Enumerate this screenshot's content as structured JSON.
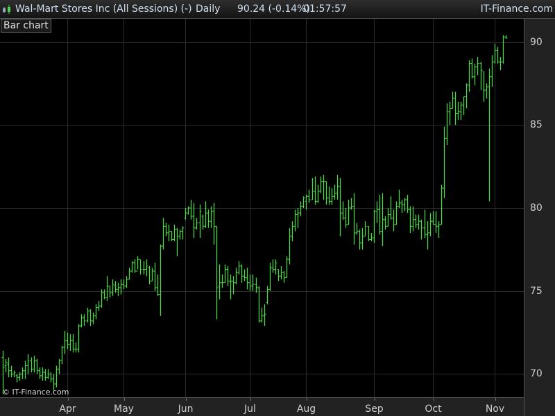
{
  "header": {
    "title": "Wal-Mart Stores Inc (All Sessions) (-)",
    "interval": "Daily",
    "quote": "90.24 (-0.14%)",
    "time": "01:57:57",
    "brand": "IT-Finance.com",
    "icon": "candlestick-icon"
  },
  "chart_type_label": "Bar chart",
  "copyright": "© IT-Finance.com",
  "colors": {
    "bar": "#4fd64a",
    "grid": "#2b2b2b",
    "background": "#000000",
    "axis_bg": "#222222"
  },
  "chart_data": {
    "type": "ohlc-bar",
    "ylim": [
      68.6,
      91.4
    ],
    "y_ticks": [
      70,
      75,
      80,
      85,
      90
    ],
    "y_axis_position": "right",
    "grid": true,
    "x_months": [
      {
        "label": "Apr",
        "bar_index": 23
      },
      {
        "label": "May",
        "bar_index": 43
      },
      {
        "label": "Jun",
        "bar_index": 65
      },
      {
        "label": "Jul",
        "bar_index": 88
      },
      {
        "label": "Aug",
        "bar_index": 108
      },
      {
        "label": "Sep",
        "bar_index": 132
      },
      {
        "label": "Oct",
        "bar_index": 153
      },
      {
        "label": "Nov",
        "bar_index": 175
      }
    ],
    "ohlc_fields": [
      "open",
      "high",
      "low",
      "close"
    ],
    "ohlc": [
      [
        71.0,
        71.4,
        68.8,
        70.4
      ],
      [
        70.5,
        70.9,
        70.1,
        70.7
      ],
      [
        70.6,
        71.0,
        69.8,
        70.2
      ],
      [
        70.2,
        70.5,
        69.8,
        70.0
      ],
      [
        70.0,
        70.2,
        69.8,
        70.1
      ],
      [
        69.9,
        70.0,
        69.5,
        69.8
      ],
      [
        69.8,
        70.1,
        69.6,
        70.0
      ],
      [
        70.0,
        70.4,
        69.7,
        70.2
      ],
      [
        70.2,
        70.8,
        69.7,
        70.5
      ],
      [
        70.5,
        71.2,
        70.0,
        70.8
      ],
      [
        70.8,
        71.0,
        70.1,
        70.3
      ],
      [
        70.3,
        71.1,
        70.1,
        70.8
      ],
      [
        70.8,
        70.9,
        70.0,
        70.2
      ],
      [
        70.2,
        70.4,
        69.7,
        69.9
      ],
      [
        69.9,
        70.4,
        69.6,
        70.1
      ],
      [
        70.1,
        70.3,
        69.6,
        69.8
      ],
      [
        69.8,
        70.3,
        69.7,
        70.0
      ],
      [
        70.0,
        70.1,
        69.5,
        69.7
      ],
      [
        69.7,
        70.0,
        69.0,
        69.4
      ],
      [
        69.4,
        70.5,
        69.2,
        70.3
      ],
      [
        70.3,
        70.9,
        70.0,
        70.8
      ],
      [
        70.8,
        71.7,
        70.6,
        71.6
      ],
      [
        71.6,
        72.6,
        71.2,
        72.0
      ],
      [
        72.0,
        72.5,
        71.5,
        71.8
      ],
      [
        71.8,
        72.4,
        71.4,
        72.0
      ],
      [
        72.0,
        72.4,
        71.3,
        71.5
      ],
      [
        71.5,
        71.9,
        71.3,
        71.5
      ],
      [
        71.5,
        73.0,
        71.3,
        72.9
      ],
      [
        72.9,
        73.6,
        72.8,
        73.4
      ],
      [
        73.4,
        73.6,
        72.9,
        73.2
      ],
      [
        73.2,
        74.0,
        73.1,
        73.8
      ],
      [
        73.8,
        73.9,
        72.9,
        73.2
      ],
      [
        73.2,
        73.7,
        73.0,
        73.5
      ],
      [
        73.5,
        74.2,
        73.3,
        74.0
      ],
      [
        74.0,
        74.4,
        73.8,
        74.1
      ],
      [
        74.1,
        75.1,
        74.0,
        74.9
      ],
      [
        74.9,
        75.1,
        74.5,
        74.6
      ],
      [
        74.6,
        75.9,
        74.4,
        75.3
      ],
      [
        75.3,
        75.3,
        74.6,
        74.9
      ],
      [
        74.9,
        75.7,
        74.7,
        75.4
      ],
      [
        75.3,
        75.6,
        74.9,
        75.1
      ],
      [
        75.1,
        75.5,
        74.7,
        75.2
      ],
      [
        75.2,
        75.7,
        74.8,
        75.4
      ],
      [
        75.4,
        75.7,
        75.1,
        75.3
      ],
      [
        75.3,
        75.9,
        75.2,
        75.7
      ],
      [
        75.7,
        76.4,
        75.7,
        76.2
      ],
      [
        76.2,
        76.8,
        76.1,
        76.7
      ],
      [
        76.7,
        76.9,
        76.1,
        76.2
      ],
      [
        76.2,
        77.1,
        76.3,
        76.9
      ],
      [
        76.9,
        76.9,
        76.0,
        76.3
      ],
      [
        76.3,
        76.8,
        76.0,
        76.3
      ],
      [
        76.3,
        76.9,
        75.9,
        76.5
      ],
      [
        76.4,
        76.5,
        75.4,
        75.6
      ],
      [
        75.6,
        76.4,
        75.6,
        76.2
      ],
      [
        76.2,
        76.7,
        75.0,
        75.2
      ],
      [
        75.2,
        76.0,
        74.7,
        74.8
      ],
      [
        74.8,
        77.8,
        73.5,
        77.7
      ],
      [
        77.7,
        79.4,
        77.5,
        78.9
      ],
      [
        78.9,
        79.1,
        78.3,
        78.5
      ],
      [
        78.5,
        79.0,
        78.0,
        78.6
      ],
      [
        78.6,
        78.6,
        78.0,
        78.1
      ],
      [
        78.1,
        79.0,
        78.0,
        78.7
      ],
      [
        78.7,
        78.8,
        77.1,
        78.3
      ],
      [
        78.3,
        78.7,
        78.1,
        78.6
      ],
      [
        78.6,
        78.9,
        78.1,
        78.8
      ],
      [
        79.4,
        80.0,
        79.3,
        79.7
      ],
      [
        79.7,
        80.1,
        79.6,
        80.0
      ],
      [
        80.0,
        80.5,
        79.3,
        79.5
      ],
      [
        79.5,
        80.3,
        78.2,
        78.8
      ],
      [
        78.8,
        79.4,
        78.7,
        79.1
      ],
      [
        79.1,
        80.2,
        78.2,
        79.8
      ],
      [
        79.5,
        79.6,
        78.7,
        78.9
      ],
      [
        78.9,
        80.4,
        78.8,
        79.7
      ],
      [
        79.7,
        79.9,
        78.8,
        79.2
      ],
      [
        79.2,
        80.1,
        78.8,
        79.8
      ],
      [
        79.8,
        80.3,
        77.8,
        78.9
      ],
      [
        78.9,
        78.9,
        73.3,
        75.2
      ],
      [
        75.3,
        76.6,
        74.5,
        75.5
      ],
      [
        75.5,
        76.0,
        75.2,
        75.5
      ],
      [
        75.5,
        76.6,
        75.5,
        76.3
      ],
      [
        76.3,
        76.5,
        75.3,
        75.6
      ],
      [
        75.6,
        76.0,
        74.5,
        75.6
      ],
      [
        75.6,
        75.9,
        74.8,
        75.5
      ],
      [
        75.5,
        76.4,
        75.4,
        76.1
      ],
      [
        76.1,
        76.8,
        76.0,
        76.5
      ],
      [
        76.5,
        76.6,
        75.5,
        75.9
      ],
      [
        75.9,
        76.3,
        75.6,
        75.8
      ],
      [
        75.8,
        76.4,
        75.1,
        75.5
      ],
      [
        75.5,
        76.0,
        75.0,
        75.3
      ],
      [
        75.3,
        76.0,
        75.0,
        75.4
      ],
      [
        75.4,
        75.8,
        74.9,
        75.2
      ],
      [
        75.2,
        75.3,
        73.1,
        73.2
      ],
      [
        73.2,
        74.0,
        73.1,
        73.5
      ],
      [
        73.5,
        74.2,
        72.9,
        73.6
      ],
      [
        74.3,
        75.3,
        74.2,
        75.1
      ],
      [
        75.1,
        76.7,
        75.0,
        76.4
      ],
      [
        76.4,
        76.9,
        76.1,
        76.3
      ],
      [
        76.3,
        76.9,
        76.0,
        76.7
      ],
      [
        76.3,
        76.3,
        75.6,
        75.9
      ],
      [
        75.9,
        76.5,
        75.7,
        76.1
      ],
      [
        76.1,
        76.2,
        75.5,
        75.8
      ],
      [
        75.8,
        77.1,
        75.8,
        76.9
      ],
      [
        76.9,
        78.8,
        76.6,
        78.3
      ],
      [
        78.3,
        79.2,
        78.0,
        78.9
      ],
      [
        78.9,
        79.9,
        78.6,
        79.6
      ],
      [
        79.6,
        80.0,
        78.8,
        79.7
      ],
      [
        79.7,
        80.4,
        79.5,
        80.1
      ],
      [
        80.1,
        80.7,
        80.0,
        80.6
      ],
      [
        80.4,
        80.8,
        79.9,
        80.7
      ],
      [
        80.7,
        81.1,
        80.3,
        80.5
      ],
      [
        80.5,
        81.8,
        80.5,
        81.0
      ],
      [
        81.0,
        81.9,
        80.2,
        80.4
      ],
      [
        80.4,
        81.4,
        80.3,
        81.0
      ],
      [
        81.0,
        81.9,
        80.9,
        81.6
      ],
      [
        81.6,
        82.0,
        80.5,
        81.6
      ],
      [
        81.6,
        81.6,
        80.2,
        80.6
      ],
      [
        80.6,
        81.3,
        80.2,
        80.4
      ],
      [
        80.4,
        81.2,
        80.2,
        80.7
      ],
      [
        80.7,
        81.4,
        80.5,
        80.9
      ],
      [
        80.9,
        82.0,
        80.5,
        81.3
      ],
      [
        81.3,
        81.8,
        78.3,
        79.7
      ],
      [
        79.7,
        80.4,
        79.3,
        79.4
      ],
      [
        79.4,
        80.0,
        78.8,
        79.0
      ],
      [
        79.0,
        80.5,
        79.0,
        80.0
      ],
      [
        80.0,
        80.6,
        79.9,
        80.1
      ],
      [
        80.1,
        80.9,
        77.8,
        78.5
      ],
      [
        78.5,
        79.1,
        78.4,
        78.6
      ],
      [
        78.6,
        78.7,
        77.5,
        77.9
      ],
      [
        77.9,
        78.8,
        77.5,
        78.3
      ],
      [
        78.3,
        79.2,
        78.3,
        78.9
      ],
      [
        78.9,
        78.9,
        78.0,
        78.1
      ],
      [
        78.1,
        78.5,
        78.0,
        78.2
      ],
      [
        78.2,
        79.9,
        77.9,
        79.8
      ],
      [
        79.8,
        80.4,
        79.1,
        79.9
      ],
      [
        79.9,
        80.8,
        78.4,
        78.6
      ],
      [
        78.6,
        80.9,
        77.7,
        79.3
      ],
      [
        79.3,
        79.5,
        78.7,
        78.9
      ],
      [
        78.9,
        80.0,
        78.9,
        79.6
      ],
      [
        79.6,
        80.7,
        79.3,
        79.4
      ],
      [
        79.4,
        79.9,
        78.6,
        79.0
      ],
      [
        79.0,
        80.4,
        79.0,
        80.1
      ],
      [
        80.1,
        81.1,
        80.0,
        80.3
      ],
      [
        80.3,
        80.5,
        79.7,
        80.2
      ],
      [
        80.2,
        80.6,
        79.8,
        80.5
      ],
      [
        80.5,
        80.8,
        79.7,
        79.9
      ],
      [
        79.9,
        80.1,
        78.5,
        78.9
      ],
      [
        78.9,
        80.1,
        78.6,
        79.3
      ],
      [
        79.3,
        79.6,
        78.8,
        79.0
      ],
      [
        79.0,
        79.6,
        78.7,
        79.2
      ],
      [
        79.2,
        79.3,
        78.1,
        78.8
      ],
      [
        78.8,
        79.9,
        78.2,
        78.4
      ],
      [
        78.4,
        79.2,
        77.5,
        78.5
      ],
      [
        78.5,
        79.7,
        78.3,
        79.2
      ],
      [
        79.2,
        79.8,
        79.0,
        79.0
      ],
      [
        79.0,
        79.8,
        78.5,
        78.9
      ],
      [
        78.9,
        79.2,
        78.2,
        79.0
      ],
      [
        79.0,
        81.4,
        79.0,
        81.2
      ],
      [
        81.2,
        84.9,
        80.6,
        84.2
      ],
      [
        84.2,
        86.3,
        83.8,
        85.8
      ],
      [
        85.8,
        86.4,
        85.0,
        86.0
      ],
      [
        86.0,
        87.0,
        86.0,
        86.6
      ],
      [
        86.6,
        87.0,
        85.0,
        85.7
      ],
      [
        85.7,
        86.4,
        85.3,
        85.8
      ],
      [
        85.8,
        86.4,
        85.3,
        86.2
      ],
      [
        86.2,
        86.7,
        85.6,
        86.7
      ],
      [
        86.7,
        87.5,
        86.0,
        87.4
      ],
      [
        87.4,
        88.9,
        87.0,
        88.7
      ],
      [
        88.7,
        89.0,
        87.8,
        87.9
      ],
      [
        87.9,
        88.7,
        87.4,
        88.5
      ],
      [
        88.5,
        89.1,
        88.0,
        88.7
      ],
      [
        88.7,
        88.8,
        87.1,
        88.3
      ],
      [
        88.2,
        88.2,
        86.4,
        87.1
      ],
      [
        87.1,
        87.5,
        86.6,
        87.3
      ],
      [
        87.3,
        88.4,
        80.4,
        87.9
      ],
      [
        87.9,
        89.2,
        87.3,
        88.8
      ],
      [
        88.8,
        89.9,
        88.7,
        89.5
      ],
      [
        89.5,
        89.7,
        88.7,
        88.8
      ],
      [
        88.8,
        89.1,
        88.3,
        88.8
      ],
      [
        88.8,
        90.4,
        88.7,
        90.3
      ],
      [
        90.3,
        90.4,
        90.2,
        90.24
      ]
    ]
  }
}
